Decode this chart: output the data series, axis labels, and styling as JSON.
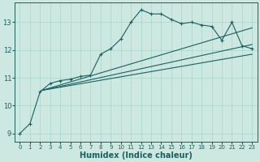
{
  "xlabel": "Humidex (Indice chaleur)",
  "bg_color": "#cce8e0",
  "line_color": "#1a6060",
  "grid_color": "#aad4cc",
  "xlim": [
    -0.5,
    23.5
  ],
  "ylim": [
    8.7,
    13.7
  ],
  "yticks": [
    9,
    10,
    11,
    12,
    13
  ],
  "xticks": [
    0,
    1,
    2,
    3,
    4,
    5,
    6,
    7,
    8,
    9,
    10,
    11,
    12,
    13,
    14,
    15,
    16,
    17,
    18,
    19,
    20,
    21,
    22,
    23
  ],
  "line1_x": [
    0,
    1,
    2,
    3,
    4,
    5,
    6,
    7,
    8,
    9,
    10,
    11,
    12,
    13,
    14,
    15,
    16,
    17,
    18,
    19,
    20,
    21,
    22,
    23
  ],
  "line1_y": [
    9.0,
    9.35,
    10.5,
    10.8,
    10.9,
    10.95,
    11.05,
    11.1,
    11.85,
    12.05,
    12.4,
    13.0,
    13.45,
    13.3,
    13.3,
    13.1,
    12.95,
    13.0,
    12.9,
    12.85,
    12.35,
    13.0,
    12.15,
    12.05
  ],
  "line1_marker_x": [
    0,
    1,
    2,
    3,
    4,
    5,
    6,
    7,
    8,
    9,
    10,
    11,
    12,
    13,
    14,
    15,
    16,
    17,
    18,
    19,
    20,
    21,
    22,
    23
  ],
  "line1_marker_y": [
    9.0,
    9.35,
    10.5,
    10.8,
    10.9,
    10.95,
    11.05,
    11.1,
    11.85,
    12.05,
    12.4,
    13.0,
    13.45,
    13.3,
    13.3,
    13.1,
    12.95,
    13.0,
    12.9,
    12.85,
    12.35,
    13.0,
    12.15,
    12.05
  ],
  "line2_x": [
    2.2,
    23
  ],
  "line2_y": [
    10.55,
    12.8
  ],
  "line3_x": [
    2.2,
    23
  ],
  "line3_y": [
    10.55,
    12.2
  ],
  "line4_x": [
    2.2,
    23
  ],
  "line4_y": [
    10.55,
    11.85
  ]
}
